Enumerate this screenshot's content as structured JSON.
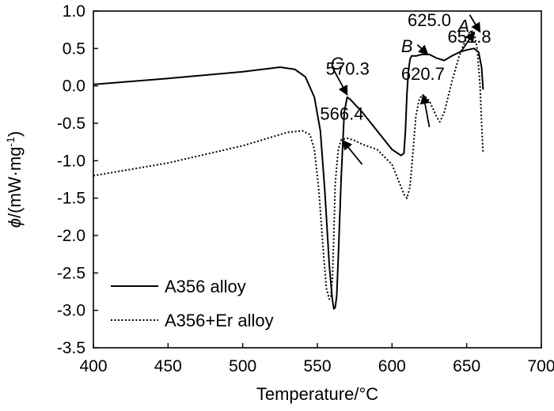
{
  "chart_data": {
    "type": "line",
    "xlabel": "Temperature/°C",
    "ylabel": {
      "symbol": "ϕ",
      "text": "/(mW·mg",
      "sup": "-1",
      "close": ")"
    },
    "xlim": [
      400,
      700
    ],
    "ylim": [
      -3.5,
      1.0
    ],
    "x_ticks": [
      400,
      450,
      500,
      550,
      600,
      650,
      700
    ],
    "y_ticks": [
      1.0,
      0.5,
      0.0,
      -0.5,
      -1.0,
      -1.5,
      -2.0,
      -2.5,
      -3.0,
      -3.5
    ],
    "y_tick_labels": [
      "1.0",
      "0.5",
      "0.0",
      "-0.5",
      "-1.0",
      "-1.5",
      "-2.0",
      "-2.5",
      "-3.0",
      "-3.5"
    ],
    "x_tick_labels": [
      "400",
      "450",
      "500",
      "550",
      "600",
      "650",
      "700"
    ],
    "grid": false,
    "legend_position": "bottom-left",
    "series": [
      {
        "name": "A356 alloy",
        "style": "solid",
        "x": [
          400,
          450,
          500,
          525,
          535,
          542,
          548,
          552,
          555,
          558,
          560,
          561,
          562,
          563,
          564,
          566,
          568,
          570,
          572,
          580,
          590,
          600,
          606,
          608,
          609,
          610,
          611,
          612,
          613,
          614,
          616,
          620,
          625,
          630,
          635,
          640,
          645,
          650,
          655,
          658,
          660,
          661
        ],
        "y": [
          0.02,
          0.1,
          0.19,
          0.25,
          0.22,
          0.12,
          -0.15,
          -0.6,
          -1.4,
          -2.4,
          -2.85,
          -2.98,
          -2.96,
          -2.8,
          -2.3,
          -1.2,
          -0.35,
          -0.15,
          -0.18,
          -0.35,
          -0.6,
          -0.85,
          -0.93,
          -0.9,
          -0.6,
          -0.1,
          0.2,
          0.35,
          0.4,
          0.4,
          0.4,
          0.42,
          0.42,
          0.37,
          0.34,
          0.4,
          0.45,
          0.48,
          0.5,
          0.45,
          0.25,
          -0.05
        ]
      },
      {
        "name": "A356+Er alloy",
        "style": "dotted",
        "x": [
          400,
          450,
          500,
          530,
          540,
          545,
          548,
          551,
          554,
          556,
          558,
          559,
          560,
          561,
          562,
          564,
          566,
          570,
          575,
          580,
          590,
          600,
          605,
          608,
          610,
          612,
          614,
          616,
          618,
          620,
          622,
          625,
          628,
          630,
          632,
          635,
          640,
          645,
          650,
          653,
          655,
          657,
          659,
          660,
          661
        ],
        "y": [
          -1.2,
          -1.03,
          -0.8,
          -0.62,
          -0.6,
          -0.65,
          -0.85,
          -1.4,
          -2.2,
          -2.7,
          -2.85,
          -2.82,
          -2.6,
          -2.0,
          -1.3,
          -0.85,
          -0.72,
          -0.7,
          -0.73,
          -0.78,
          -0.85,
          -1.05,
          -1.3,
          -1.45,
          -1.5,
          -1.35,
          -0.9,
          -0.4,
          -0.2,
          -0.12,
          -0.14,
          -0.2,
          -0.33,
          -0.42,
          -0.48,
          -0.35,
          0.05,
          0.4,
          0.65,
          0.72,
          0.7,
          0.5,
          0.0,
          -0.5,
          -0.9
        ]
      }
    ],
    "annotations": [
      {
        "text": "570.3",
        "x": 570.3,
        "y": 0.15
      },
      {
        "text": "566.4",
        "x": 566.4,
        "y": -0.45
      },
      {
        "text": "625.0",
        "x": 625.0,
        "y": 0.8
      },
      {
        "text": "620.7",
        "x": 620.7,
        "y": 0.08
      },
      {
        "text": "651.8",
        "x": 651.8,
        "y": 0.58
      },
      {
        "text": "A",
        "x": 648,
        "y": 0.72,
        "italic": true
      },
      {
        "text": "B",
        "x": 610,
        "y": 0.45,
        "italic": true
      },
      {
        "text": "C",
        "x": 563,
        "y": 0.22,
        "italic": true
      }
    ]
  }
}
